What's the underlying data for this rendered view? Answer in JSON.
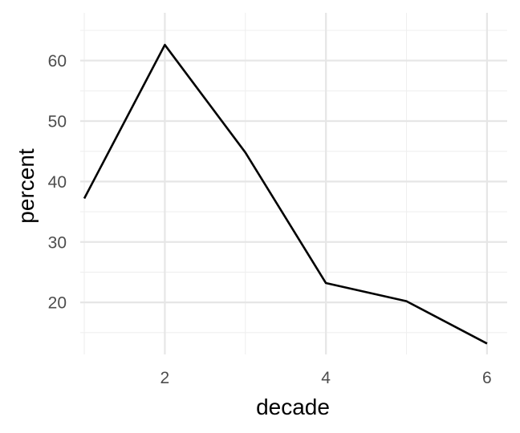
{
  "chart_data": {
    "type": "line",
    "title": "",
    "xlabel": "decade",
    "ylabel": "percent",
    "x": [
      1,
      2,
      3,
      4,
      5,
      6
    ],
    "series": [
      {
        "values": [
          37.2,
          62.6,
          44.8,
          23.2,
          20.2,
          13.2
        ]
      }
    ],
    "xlim": [
      0.95,
      6.25
    ],
    "ylim": [
      11.4,
      67.9
    ],
    "x_ticks": [
      2,
      4,
      6
    ],
    "x_tick_labels": [
      "2",
      "4",
      "6"
    ],
    "x_minor_ticks": [
      1,
      3,
      5
    ],
    "y_ticks": [
      20,
      30,
      40,
      50,
      60
    ],
    "y_tick_labels": [
      "20",
      "30",
      "40",
      "50",
      "60"
    ],
    "y_minor_ticks": [
      15,
      25,
      35,
      45,
      55,
      65
    ],
    "grid": true,
    "legend": "none",
    "line_color": "#000000",
    "grid_color": "#e6e6e6"
  }
}
